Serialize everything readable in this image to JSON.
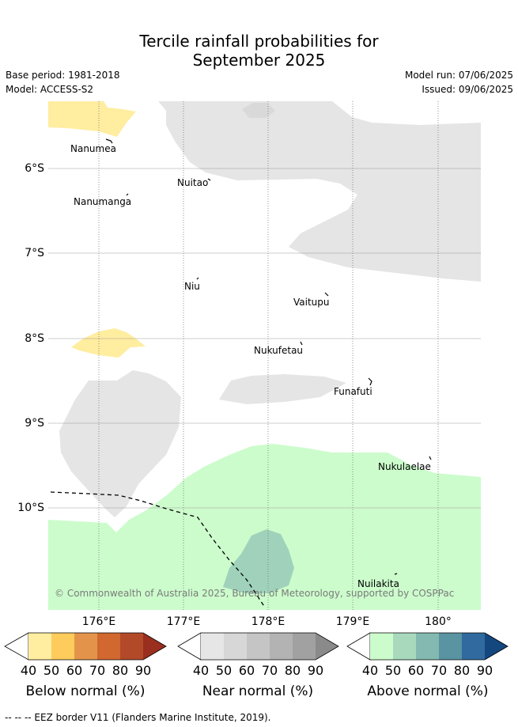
{
  "title_line1": "Tercile rainfall probabilities for",
  "title_line2": "September 2025",
  "base_period": "Base period: 1981-2018",
  "model": "Model: ACCESS-S2",
  "model_run": "Model run: 07/06/2025",
  "issued": "Issued: 09/06/2025",
  "copyright": "© Commonwealth of Australia 2025, Bureau of Meteorology, supported by COSPPac",
  "eez_legend": "--  --  -- EEZ border V11 (Flanders Marine Institute, 2019).",
  "longitude_labels": [
    "176°E",
    "177°E",
    "178°E",
    "179°E",
    "180°"
  ],
  "latitude_labels": [
    "6°S",
    "7°S",
    "8°S",
    "9°S",
    "10°S"
  ],
  "places": [
    {
      "name": "Nanumea"
    },
    {
      "name": "Nuitao"
    },
    {
      "name": "Nanumanga"
    },
    {
      "name": "Niu"
    },
    {
      "name": "Vaitupu"
    },
    {
      "name": "Nukufetau"
    },
    {
      "name": "Funafuti"
    },
    {
      "name": "Nukulaelae"
    },
    {
      "name": "Nuilakita"
    }
  ],
  "colorbars": [
    {
      "label": "Below normal (%)",
      "ticks": [
        "40",
        "50",
        "60",
        "70",
        "80",
        "90"
      ],
      "colors": [
        "#ffeda0",
        "#fecc5c",
        "#e3944a",
        "#d0682f",
        "#b24a29",
        "#9a2e1f"
      ]
    },
    {
      "label": "Near normal (%)",
      "ticks": [
        "40",
        "50",
        "60",
        "70",
        "80",
        "90"
      ],
      "colors": [
        "#e6e6e6",
        "#d7d7d7",
        "#c5c5c5",
        "#b3b3b3",
        "#a1a1a1",
        "#8a8a8a"
      ]
    },
    {
      "label": "Above normal (%)",
      "ticks": [
        "40",
        "50",
        "60",
        "70",
        "80",
        "90"
      ],
      "colors": [
        "#ccfccc",
        "#a8d9bc",
        "#84b9b1",
        "#5a93a1",
        "#306a9e",
        "#13477e"
      ]
    }
  ],
  "region_colors": {
    "below_40": "#ffeda0",
    "near_40": "#e6e6e6",
    "above_40": "#ccfccc",
    "above_50": "#a0d2bb"
  }
}
